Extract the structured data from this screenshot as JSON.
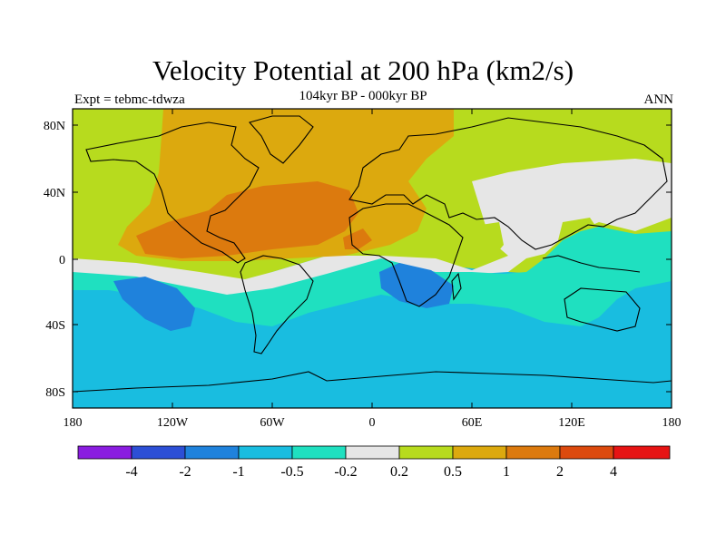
{
  "title": "Velocity Potential at 200 hPa (km2/s)",
  "subtitle": "104kyr BP - 000kyr BP",
  "left_label": "Expt = tebmc-tdwza",
  "right_label": "ANN",
  "lat_ticks": [
    "80N",
    "40N",
    "0",
    "40S",
    "80S"
  ],
  "lon_ticks": [
    "180",
    "120W",
    "60W",
    "0",
    "60E",
    "120E",
    "180"
  ],
  "colorbar": {
    "labels": [
      "-4",
      "-2",
      "-1",
      "-0.5",
      "-0.2",
      "0.2",
      "0.5",
      "1",
      "2",
      "4"
    ],
    "colors": [
      "#8a1de0",
      "#2d4fd6",
      "#1f82dc",
      "#19bde0",
      "#1fe0c0",
      "#e6e6e6",
      "#b7db1e",
      "#dca90e",
      "#dc7a0e",
      "#dc4a0e",
      "#e61414"
    ]
  },
  "colors": {
    "neg_strong": "#1f82dc",
    "neg_mid": "#19bde0",
    "neg_weak": "#1fe0c0",
    "neutral": "#e6e6e6",
    "pos_weak": "#b7db1e",
    "pos_mid": "#dca90e",
    "pos_strong": "#dc7a0e"
  }
}
